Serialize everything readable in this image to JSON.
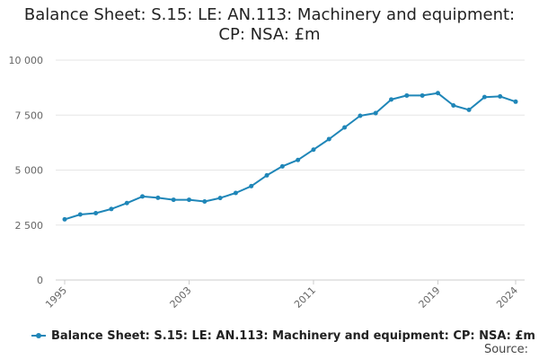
{
  "title_lines": [
    "Balance Sheet: S.15: LE: AN.113: Machinery and equipment:",
    "CP: NSA: £m"
  ],
  "source_label": "Source:",
  "colors": {
    "series": "#1f86b8",
    "grid": "#e6e6e6",
    "axis_text": "#666666"
  },
  "chart_data": {
    "type": "line",
    "title": "Balance Sheet: S.15: LE: AN.113: Machinery and equipment: CP: NSA: £m",
    "xlabel": "",
    "ylabel": "",
    "ylim": [
      0,
      10000
    ],
    "yticks": [
      0,
      2500,
      5000,
      7500,
      10000
    ],
    "ytick_labels": [
      "0",
      "2 500",
      "5 000",
      "7 500",
      "10 000"
    ],
    "xticks": [
      1995,
      2003,
      2011,
      2019,
      2024
    ],
    "xtick_labels": [
      "1995",
      "2003",
      "2011",
      "2019",
      "2024"
    ],
    "grid": true,
    "legend_position": "bottom-left",
    "x": [
      1995,
      1996,
      1997,
      1998,
      1999,
      2000,
      2001,
      2002,
      2003,
      2004,
      2005,
      2006,
      2007,
      2008,
      2009,
      2010,
      2011,
      2012,
      2013,
      2014,
      2015,
      2016,
      2017,
      2018,
      2019,
      2020,
      2021,
      2022,
      2023,
      2024
    ],
    "series": [
      {
        "name": "Balance Sheet: S.15: LE: AN.113: Machinery and equipment: CP: NSA: £m",
        "values": [
          2760,
          2980,
          3040,
          3230,
          3500,
          3800,
          3740,
          3650,
          3650,
          3570,
          3730,
          3960,
          4270,
          4760,
          5170,
          5460,
          5930,
          6410,
          6940,
          7470,
          7590,
          8210,
          8390,
          8390,
          8500,
          7940,
          7740,
          8320,
          8350,
          8110
        ]
      }
    ]
  }
}
